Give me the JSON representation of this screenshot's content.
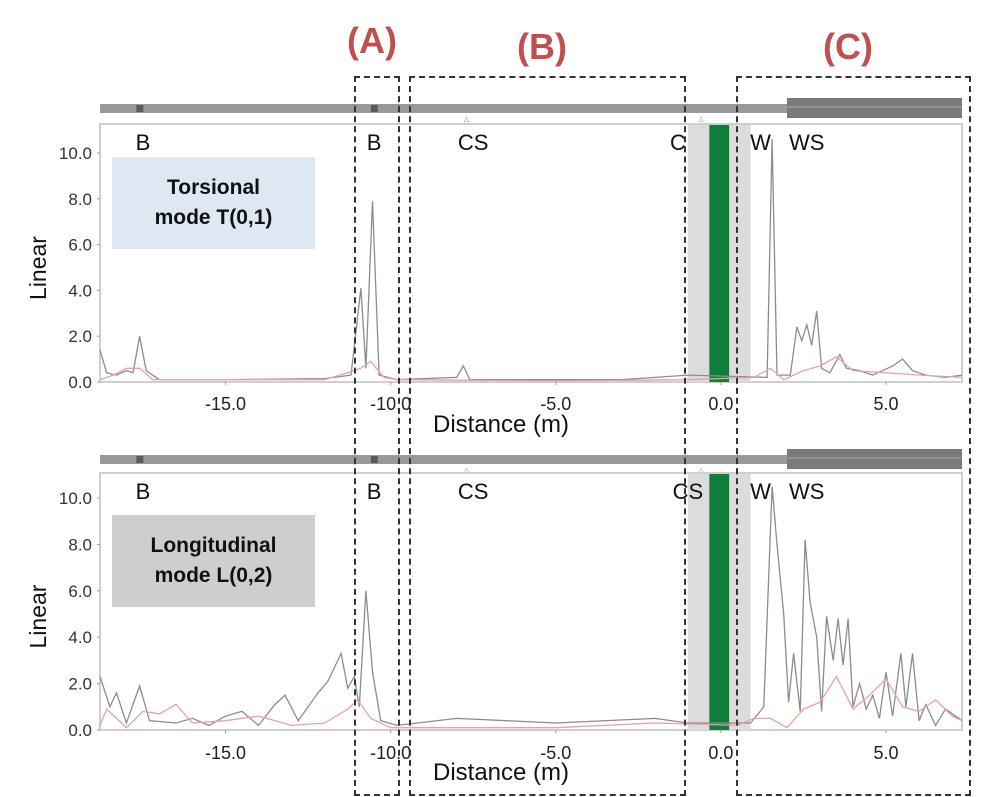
{
  "regions": [
    {
      "id": "A",
      "label": "(A)"
    },
    {
      "id": "B",
      "label": "(B)"
    },
    {
      "id": "C",
      "label": "(C)"
    }
  ],
  "colors": {
    "region_label": "#c0504d",
    "signal_gray": "#8c8c8c",
    "signal_pink": "#e8a3a0",
    "green_band": "#0e7f3a",
    "gray_band": "#dcdcdc",
    "pipe_bar": "#999999",
    "pipe_bar_dark": "#7a7a7a",
    "torsional_box": "#dde8f3",
    "longitudinal_box": "#cfcdcd"
  },
  "chart_data": [
    {
      "type": "line",
      "title": "Torsional mode T(0,1)",
      "mode_label_line1": "Torsional",
      "mode_label_line2": "mode T(0,1)",
      "xlabel": "Distance (m)",
      "ylabel": "Linear",
      "xlim": [
        -18.8,
        7.3
      ],
      "ylim": [
        0,
        11.2
      ],
      "x_ticks": [
        "-15.0",
        "-10.0",
        "-5.0",
        "0.0",
        "5.0"
      ],
      "y_ticks": [
        "0.0",
        "2.0",
        "4.0",
        "6.0",
        "8.0",
        "10.0"
      ],
      "feature_labels": [
        {
          "text": "B",
          "x": -17.5
        },
        {
          "text": "B",
          "x": -10.5
        },
        {
          "text": "CS",
          "x": -7.5
        },
        {
          "text": "C",
          "x": -1.3
        },
        {
          "text": "W",
          "x": 1.2
        },
        {
          "text": "WS",
          "x": 2.6
        }
      ],
      "grid": false,
      "series": [
        {
          "name": "signal (gray)",
          "color": "#8c8c8c",
          "points": [
            [
              -18.8,
              1.4
            ],
            [
              -18.6,
              0.4
            ],
            [
              -18.3,
              0.3
            ],
            [
              -18.0,
              0.5
            ],
            [
              -17.8,
              0.4
            ],
            [
              -17.6,
              2.0
            ],
            [
              -17.4,
              0.5
            ],
            [
              -17.0,
              0.1
            ],
            [
              -15.0,
              0.1
            ],
            [
              -12.0,
              0.15
            ],
            [
              -11.2,
              0.3
            ],
            [
              -10.9,
              4.1
            ],
            [
              -10.75,
              0.6
            ],
            [
              -10.55,
              7.9
            ],
            [
              -10.35,
              0.3
            ],
            [
              -9.8,
              0.1
            ],
            [
              -8.0,
              0.2
            ],
            [
              -7.8,
              0.7
            ],
            [
              -7.6,
              0.1
            ],
            [
              -3.0,
              0.1
            ],
            [
              -1.0,
              0.3
            ],
            [
              1.4,
              0.2
            ],
            [
              1.55,
              10.6
            ],
            [
              1.7,
              0.3
            ],
            [
              2.1,
              0.3
            ],
            [
              2.3,
              2.4
            ],
            [
              2.45,
              1.8
            ],
            [
              2.6,
              2.5
            ],
            [
              2.75,
              1.6
            ],
            [
              2.9,
              3.1
            ],
            [
              3.05,
              0.6
            ],
            [
              3.3,
              0.4
            ],
            [
              3.6,
              1.2
            ],
            [
              3.8,
              0.6
            ],
            [
              4.2,
              0.5
            ],
            [
              4.6,
              0.3
            ],
            [
              5.2,
              0.7
            ],
            [
              5.5,
              1.0
            ],
            [
              5.8,
              0.5
            ],
            [
              6.2,
              0.3
            ],
            [
              6.8,
              0.2
            ],
            [
              7.3,
              0.3
            ]
          ]
        },
        {
          "name": "signal (pink)",
          "color": "#e8a3a0",
          "points": [
            [
              -18.8,
              0.1
            ],
            [
              -18.4,
              0.3
            ],
            [
              -18.0,
              0.6
            ],
            [
              -17.6,
              0.6
            ],
            [
              -17.2,
              0.1
            ],
            [
              -15.0,
              0.1
            ],
            [
              -12.0,
              0.1
            ],
            [
              -11.3,
              0.4
            ],
            [
              -10.9,
              0.6
            ],
            [
              -10.6,
              0.9
            ],
            [
              -10.2,
              0.2
            ],
            [
              -9.8,
              0.1
            ],
            [
              -5.0,
              0.05
            ],
            [
              -1.0,
              0.1
            ],
            [
              1.0,
              0.2
            ],
            [
              1.5,
              0.6
            ],
            [
              1.9,
              0.1
            ],
            [
              2.5,
              0.5
            ],
            [
              3.0,
              0.7
            ],
            [
              3.5,
              1.1
            ],
            [
              4.0,
              0.5
            ],
            [
              5.0,
              0.4
            ],
            [
              6.0,
              0.3
            ],
            [
              7.3,
              0.2
            ]
          ]
        }
      ],
      "bands": [
        {
          "type": "gray",
          "x_from": -1.0,
          "x_to": 0.9
        },
        {
          "type": "green",
          "x_from": -0.35,
          "x_to": 0.25
        }
      ]
    },
    {
      "type": "line",
      "title": "Longitudinal mode L(0,2)",
      "mode_label_line1": "Longitudinal",
      "mode_label_line2": "mode L(0,2)",
      "xlabel": "Distance (m)",
      "ylabel": "Linear",
      "xlim": [
        -18.8,
        7.3
      ],
      "ylim": [
        0,
        11.2
      ],
      "x_ticks": [
        "-15.0",
        "-10.0",
        "-5.0",
        "0.0",
        "5.0"
      ],
      "y_ticks": [
        "0.0",
        "2.0",
        "4.0",
        "6.0",
        "8.0",
        "10.0"
      ],
      "feature_labels": [
        {
          "text": "B",
          "x": -17.5
        },
        {
          "text": "B",
          "x": -10.5
        },
        {
          "text": "CS",
          "x": -7.5
        },
        {
          "text": "CS",
          "x": -1.0
        },
        {
          "text": "W",
          "x": 1.2
        },
        {
          "text": "WS",
          "x": 2.6
        }
      ],
      "grid": false,
      "series": [
        {
          "name": "signal (gray)",
          "color": "#8c8c8c",
          "points": [
            [
              -18.8,
              2.3
            ],
            [
              -18.5,
              1.0
            ],
            [
              -18.3,
              1.6
            ],
            [
              -18.0,
              0.3
            ],
            [
              -17.6,
              1.9
            ],
            [
              -17.3,
              0.4
            ],
            [
              -16.5,
              0.3
            ],
            [
              -16.0,
              0.5
            ],
            [
              -15.5,
              0.2
            ],
            [
              -15.0,
              0.6
            ],
            [
              -14.5,
              0.8
            ],
            [
              -14.0,
              0.2
            ],
            [
              -13.5,
              1.1
            ],
            [
              -13.2,
              1.5
            ],
            [
              -12.8,
              0.4
            ],
            [
              -12.2,
              1.6
            ],
            [
              -11.9,
              2.1
            ],
            [
              -11.5,
              3.3
            ],
            [
              -11.3,
              1.8
            ],
            [
              -11.1,
              2.3
            ],
            [
              -10.95,
              1.0
            ],
            [
              -10.75,
              6.0
            ],
            [
              -10.55,
              2.5
            ],
            [
              -10.3,
              0.4
            ],
            [
              -9.8,
              0.2
            ],
            [
              -8.0,
              0.5
            ],
            [
              -5.0,
              0.3
            ],
            [
              -2.0,
              0.5
            ],
            [
              -1.0,
              0.3
            ],
            [
              0.9,
              0.3
            ],
            [
              1.3,
              1.0
            ],
            [
              1.55,
              10.5
            ],
            [
              1.7,
              8.0
            ],
            [
              1.9,
              5.0
            ],
            [
              2.05,
              1.2
            ],
            [
              2.2,
              3.3
            ],
            [
              2.4,
              0.8
            ],
            [
              2.55,
              8.2
            ],
            [
              2.7,
              5.5
            ],
            [
              2.9,
              4.0
            ],
            [
              3.05,
              0.8
            ],
            [
              3.2,
              4.9
            ],
            [
              3.4,
              3.0
            ],
            [
              3.55,
              4.8
            ],
            [
              3.7,
              2.8
            ],
            [
              3.85,
              4.8
            ],
            [
              4.0,
              1.0
            ],
            [
              4.2,
              2.0
            ],
            [
              4.4,
              0.9
            ],
            [
              4.6,
              1.5
            ],
            [
              4.8,
              0.5
            ],
            [
              5.0,
              2.5
            ],
            [
              5.2,
              0.6
            ],
            [
              5.45,
              3.3
            ],
            [
              5.6,
              1.0
            ],
            [
              5.8,
              3.3
            ],
            [
              6.0,
              0.4
            ],
            [
              6.2,
              1.1
            ],
            [
              6.5,
              0.2
            ],
            [
              6.8,
              0.9
            ],
            [
              7.3,
              0.4
            ]
          ]
        },
        {
          "name": "signal (pink)",
          "color": "#e8a3a0",
          "points": [
            [
              -18.8,
              0.2
            ],
            [
              -18.6,
              0.9
            ],
            [
              -18.3,
              0.5
            ],
            [
              -18.0,
              0.1
            ],
            [
              -17.5,
              0.8
            ],
            [
              -17.0,
              0.7
            ],
            [
              -16.5,
              1.1
            ],
            [
              -16.0,
              0.3
            ],
            [
              -15.0,
              0.4
            ],
            [
              -14.0,
              0.6
            ],
            [
              -13.0,
              0.2
            ],
            [
              -12.0,
              0.3
            ],
            [
              -11.3,
              0.9
            ],
            [
              -11.0,
              1.3
            ],
            [
              -10.6,
              0.5
            ],
            [
              -10.0,
              0.1
            ],
            [
              -5.0,
              0.1
            ],
            [
              -2.0,
              0.3
            ],
            [
              0.5,
              0.2
            ],
            [
              1.0,
              0.5
            ],
            [
              1.5,
              0.5
            ],
            [
              2.0,
              0.1
            ],
            [
              2.5,
              0.9
            ],
            [
              3.0,
              1.2
            ],
            [
              3.5,
              2.3
            ],
            [
              4.0,
              0.9
            ],
            [
              4.5,
              1.5
            ],
            [
              5.0,
              2.2
            ],
            [
              5.5,
              1.0
            ],
            [
              6.0,
              0.8
            ],
            [
              6.5,
              1.3
            ],
            [
              7.0,
              0.6
            ],
            [
              7.3,
              0.4
            ]
          ]
        }
      ],
      "bands": [
        {
          "type": "gray",
          "x_from": -1.0,
          "x_to": 0.9
        },
        {
          "type": "green",
          "x_from": -0.35,
          "x_to": 0.25
        }
      ]
    }
  ]
}
